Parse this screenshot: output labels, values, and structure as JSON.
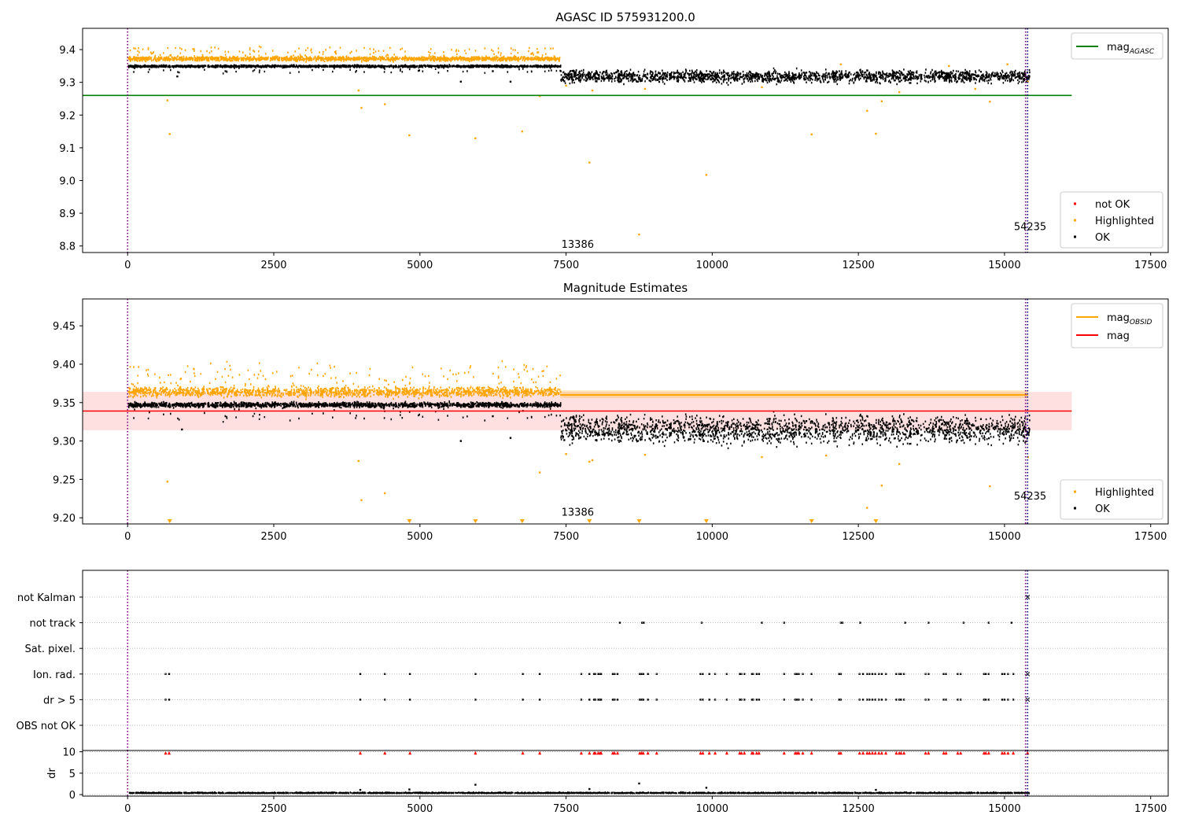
{
  "chart_data": [
    {
      "type": "scatter",
      "title": "AGASC ID 575931200.0",
      "xlabel": "",
      "ylabel": "",
      "xlim": [
        -770,
        17800
      ],
      "ylim": [
        8.78,
        9.465
      ],
      "xticks": [
        0,
        2500,
        5000,
        7500,
        10000,
        12500,
        15000,
        17500
      ],
      "yticks": [
        8.8,
        8.9,
        9.0,
        9.1,
        9.2,
        9.3,
        9.4
      ],
      "ytick_labels": [
        "8.8",
        "8.9",
        "9.0",
        "9.1",
        "9.2",
        "9.3",
        "9.4"
      ],
      "grid": false,
      "vlines": [
        {
          "x": 0,
          "color": "#800080"
        },
        {
          "x": 15360,
          "color": "#800080"
        },
        {
          "x": 15395,
          "color": "#000080"
        }
      ],
      "annotations": [
        {
          "x": 7420,
          "y": 8.795,
          "text": "13386"
        },
        {
          "x": 15160,
          "y": 8.848,
          "text": "54235"
        }
      ],
      "hlines": [
        {
          "name": "mag_AGASC",
          "y": 9.26,
          "x_range": [
            -770,
            16150
          ],
          "color": "#008000"
        }
      ],
      "bands": [
        {
          "color": "#ffa500",
          "x_range": [
            0,
            7400
          ],
          "y_center": 9.372,
          "spread": 0.006,
          "spike_up": 0.035,
          "spike_prob": 0.08
        },
        {
          "color": "#000000",
          "x_range": [
            0,
            7400
          ],
          "y_center": 9.349,
          "spread": 0.003,
          "spike_down": 0.02,
          "spike_prob": 0.04
        },
        {
          "color": "#000000",
          "x_range": [
            7400,
            15420
          ],
          "y_center": 9.318,
          "spread": 0.018
        }
      ],
      "series": [
        {
          "name": "not OK",
          "color": "#ff0000",
          "points": []
        },
        {
          "name": "Highlighted",
          "color": "#ffa500",
          "points": [
            [
              680,
              9.245
            ],
            [
              720,
              9.142
            ],
            [
              3950,
              9.275
            ],
            [
              4000,
              9.222
            ],
            [
              4400,
              9.233
            ],
            [
              4820,
              9.138
            ],
            [
              5950,
              9.129
            ],
            [
              6750,
              9.15
            ],
            [
              7050,
              9.258
            ],
            [
              7500,
              9.29
            ],
            [
              7900,
              9.055
            ],
            [
              7950,
              9.275
            ],
            [
              8750,
              8.835
            ],
            [
              8850,
              9.28
            ],
            [
              9900,
              9.017
            ],
            [
              10850,
              9.285
            ],
            [
              11700,
              9.141
            ],
            [
              12200,
              9.355
            ],
            [
              12650,
              9.213
            ],
            [
              12800,
              9.143
            ],
            [
              12900,
              9.242
            ],
            [
              13200,
              9.27
            ],
            [
              14050,
              9.35
            ],
            [
              14500,
              9.28
            ],
            [
              14750,
              9.241
            ],
            [
              15050,
              9.355
            ],
            [
              15400,
              9.302
            ]
          ]
        },
        {
          "name": "OK",
          "color": "#000000",
          "points": [
            [
              850,
              9.318
            ],
            [
              5700,
              9.302
            ],
            [
              6550,
              9.302
            ]
          ]
        }
      ],
      "legend_lines": [
        {
          "label": "mag",
          "sub": "AGASC",
          "color": "#008000"
        }
      ],
      "legend_markers": [
        {
          "label": "not OK",
          "color": "#ff0000"
        },
        {
          "label": "Highlighted",
          "color": "#ffa500"
        },
        {
          "label": "OK",
          "color": "#000000"
        }
      ]
    },
    {
      "type": "scatter",
      "title": "Magnitude Estimates",
      "xlabel": "",
      "ylabel": "",
      "xlim": [
        -770,
        17800
      ],
      "ylim": [
        9.192,
        9.485
      ],
      "xticks": [
        0,
        2500,
        5000,
        7500,
        10000,
        12500,
        15000,
        17500
      ],
      "yticks": [
        9.2,
        9.25,
        9.3,
        9.35,
        9.4,
        9.45
      ],
      "ytick_labels": [
        "9.20",
        "9.25",
        "9.30",
        "9.35",
        "9.40",
        "9.45"
      ],
      "grid": false,
      "vlines": [
        {
          "x": 0,
          "color": "#800080"
        },
        {
          "x": 15360,
          "color": "#800080"
        },
        {
          "x": 15395,
          "color": "#000080"
        }
      ],
      "annotations": [
        {
          "x": 7420,
          "y": 9.203,
          "text": "13386"
        },
        {
          "x": 15160,
          "y": 9.224,
          "text": "54235"
        }
      ],
      "band_fills": [
        {
          "color": "#ff0000",
          "opacity": 0.12,
          "x_range": [
            -770,
            16150
          ],
          "y_range": [
            9.314,
            9.364
          ]
        },
        {
          "color": "#ffa500",
          "opacity": 0.25,
          "x_range": [
            7400,
            15400
          ],
          "y_range": [
            9.356,
            9.366
          ]
        }
      ],
      "hlines": [
        {
          "name": "mag_OBSID",
          "y": 9.36,
          "x_range": [
            7400,
            15400
          ],
          "color": "#ffa500",
          "width": 2
        },
        {
          "name": "mag",
          "y": 9.339,
          "x_range": [
            -770,
            16150
          ],
          "color": "#ff0000",
          "width": 1.6
        }
      ],
      "bands": [
        {
          "color": "#ffa500",
          "x_range": [
            0,
            7400
          ],
          "y_center": 9.364,
          "spread": 0.006,
          "spike_up": 0.035,
          "spike_prob": 0.1
        },
        {
          "color": "#000000",
          "x_range": [
            0,
            7400
          ],
          "y_center": 9.347,
          "spread": 0.003,
          "spike_down": 0.02,
          "spike_prob": 0.04
        },
        {
          "color": "#000000",
          "x_range": [
            7400,
            15420
          ],
          "y_center": 9.315,
          "spread": 0.017
        }
      ],
      "series": [
        {
          "name": "Highlighted",
          "color": "#ffa500",
          "points": [
            [
              680,
              9.247
            ],
            [
              3950,
              9.274
            ],
            [
              4000,
              9.223
            ],
            [
              4400,
              9.232
            ],
            [
              7050,
              9.259
            ],
            [
              7500,
              9.283
            ],
            [
              7900,
              9.273
            ],
            [
              7950,
              9.275
            ],
            [
              8850,
              9.282
            ],
            [
              10850,
              9.279
            ],
            [
              11950,
              9.281
            ],
            [
              12650,
              9.213
            ],
            [
              12900,
              9.242
            ],
            [
              13200,
              9.27
            ],
            [
              14750,
              9.241
            ],
            [
              15400,
              9.279
            ]
          ]
        },
        {
          "name": "OK",
          "color": "#000000",
          "points": [
            [
              930,
              9.315
            ],
            [
              5700,
              9.3
            ],
            [
              6550,
              9.304
            ]
          ]
        }
      ],
      "clipped_markers": {
        "color": "#ffa500",
        "y": 9.196,
        "x": [
          720,
          4820,
          5950,
          6750,
          7900,
          8750,
          9900,
          11700,
          12800
        ]
      },
      "legend_lines": [
        {
          "label": "mag",
          "sub": "OBSID",
          "color": "#ffa500"
        },
        {
          "label": "mag",
          "color": "#ff0000"
        }
      ],
      "legend_markers": [
        {
          "label": "Highlighted",
          "color": "#ffa500"
        },
        {
          "label": "OK",
          "color": "#000000"
        }
      ]
    },
    {
      "type": "scatter",
      "title": "",
      "xlabel": "",
      "xlim": [
        -770,
        17800
      ],
      "xticks": [
        0,
        2500,
        5000,
        7500,
        10000,
        12500,
        15000,
        17500
      ],
      "categories": [
        "not Kalman",
        "not track",
        "Sat. pixel.",
        "Ion. rad.",
        "dr > 5",
        "OBS not OK"
      ],
      "grid": true,
      "vlines": [
        {
          "x": 0,
          "color": "#800080"
        },
        {
          "x": 15360,
          "color": "#800080"
        },
        {
          "x": 15395,
          "color": "#000080"
        }
      ],
      "flags": {
        "not Kalman": [],
        "not track": [
          8420,
          8800,
          8830,
          9820,
          10850,
          11230,
          12200,
          12230,
          12530,
          13300,
          13700,
          14300,
          14730,
          15120
        ],
        "Sat. pixel.": [],
        "Ion. rad.": [
          650,
          710,
          3980,
          4400,
          4830,
          5950,
          6760,
          7050,
          7760,
          7900,
          7980,
          8000,
          8050,
          8080,
          8100,
          8300,
          8330,
          8380,
          8760,
          8790,
          8820,
          8900,
          9050,
          9800,
          9840,
          9950,
          10050,
          10250,
          10470,
          10500,
          10550,
          10680,
          10700,
          10760,
          10800,
          11230,
          11420,
          11450,
          11480,
          11550,
          11700,
          12170,
          12200,
          12520,
          12580,
          12650,
          12690,
          12740,
          12790,
          12850,
          12900,
          12970,
          13150,
          13200,
          13230,
          13280,
          13650,
          13700,
          13960,
          14000,
          14200,
          14250,
          14650,
          14680,
          14730,
          14960,
          15000,
          15060,
          15150
        ],
        "dr > 5": [
          650,
          710,
          3980,
          4400,
          4830,
          5950,
          6760,
          7050,
          7760,
          7900,
          7980,
          8000,
          8050,
          8080,
          8100,
          8300,
          8330,
          8380,
          8760,
          8790,
          8820,
          8900,
          9050,
          9800,
          9840,
          9950,
          10050,
          10250,
          10470,
          10500,
          10550,
          10680,
          10700,
          10760,
          10800,
          11230,
          11420,
          11450,
          11480,
          11550,
          11700,
          12170,
          12200,
          12520,
          12580,
          12650,
          12690,
          12740,
          12790,
          12850,
          12900,
          12970,
          13150,
          13200,
          13230,
          13280,
          13650,
          13700,
          13960,
          14000,
          14200,
          14250,
          14650,
          14680,
          14730,
          14960,
          15000,
          15060,
          15150
        ],
        "OBS not OK": []
      },
      "end_flags": {
        "x": 15395,
        "rows": [
          "not Kalman",
          "Ion. rad.",
          "dr > 5"
        ]
      }
    },
    {
      "type": "scatter",
      "title": "",
      "xlabel": "",
      "ylabel": "dr",
      "xlim": [
        -770,
        17800
      ],
      "ylim": [
        -0.35,
        10.3
      ],
      "xticks": [
        0,
        2500,
        5000,
        7500,
        10000,
        12500,
        15000,
        17500
      ],
      "yticks": [
        0,
        5,
        10
      ],
      "grid": true,
      "vlines": [
        {
          "x": 0,
          "color": "#800080"
        },
        {
          "x": 15360,
          "color": "#800080"
        },
        {
          "x": 15395,
          "color": "#000080"
        }
      ],
      "baseline": {
        "color": "#000000",
        "x_range": [
          0,
          15420
        ],
        "y_center": 0.3,
        "spread": 0.2
      },
      "series": [
        {
          "name": "dr",
          "color": "#000000",
          "points": [
            [
              3980,
              1.1
            ],
            [
              4820,
              1.2
            ],
            [
              5950,
              2.3
            ],
            [
              7900,
              1.3
            ],
            [
              8750,
              2.6
            ],
            [
              9900,
              1.6
            ],
            [
              12800,
              1.1
            ]
          ]
        },
        {
          "name": "dr > 10",
          "color": "#ff0000",
          "x": [
            650,
            710,
            3980,
            4400,
            4830,
            5950,
            6760,
            7050,
            7760,
            7900,
            7980,
            8000,
            8050,
            8080,
            8100,
            8300,
            8330,
            8380,
            8760,
            8790,
            8820,
            8900,
            9050,
            9800,
            9840,
            9950,
            10050,
            10250,
            10470,
            10500,
            10550,
            10680,
            10700,
            10760,
            10800,
            11230,
            11420,
            11450,
            11480,
            11550,
            11700,
            12170,
            12200,
            12520,
            12580,
            12650,
            12690,
            12740,
            12790,
            12850,
            12900,
            12970,
            13150,
            13200,
            13230,
            13280,
            13650,
            13700,
            13960,
            14000,
            14200,
            14250,
            14650,
            14680,
            14730,
            14960,
            15000,
            15060,
            15150,
            15395
          ],
          "y": 9.7
        }
      ]
    }
  ]
}
